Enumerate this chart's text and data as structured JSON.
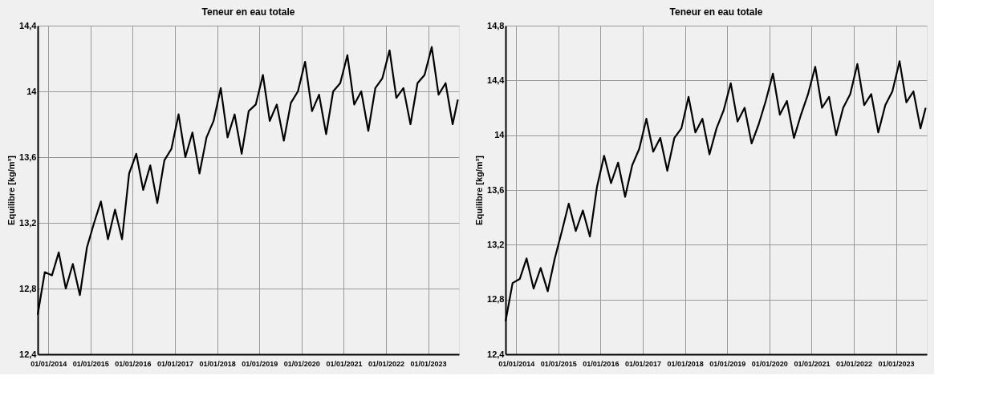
{
  "chart_data": [
    {
      "type": "line",
      "title": "Teneur en eau totale",
      "ylabel": "Equilibre [kg/m³]",
      "color": "#000000",
      "grid": true,
      "x": [
        "2013-10-01",
        "2013-12-01",
        "2014-02-01",
        "2014-04-01",
        "2014-06-01",
        "2014-08-01",
        "2014-10-01",
        "2014-12-01",
        "2015-02-01",
        "2015-04-01",
        "2015-06-01",
        "2015-08-01",
        "2015-10-01",
        "2015-12-01",
        "2016-02-01",
        "2016-04-01",
        "2016-06-01",
        "2016-08-01",
        "2016-10-01",
        "2016-12-01",
        "2017-02-01",
        "2017-04-01",
        "2017-06-01",
        "2017-08-01",
        "2017-10-01",
        "2017-12-01",
        "2018-02-01",
        "2018-04-01",
        "2018-06-01",
        "2018-08-01",
        "2018-10-01",
        "2018-12-01",
        "2019-02-01",
        "2019-04-01",
        "2019-06-01",
        "2019-08-01",
        "2019-10-01",
        "2019-12-01",
        "2020-02-01",
        "2020-04-01",
        "2020-06-01",
        "2020-08-01",
        "2020-10-01",
        "2020-12-01",
        "2021-02-01",
        "2021-04-01",
        "2021-06-01",
        "2021-08-01",
        "2021-10-01",
        "2021-12-01",
        "2022-02-01",
        "2022-04-01",
        "2022-06-01",
        "2022-08-01",
        "2022-10-01",
        "2022-12-01",
        "2023-02-01",
        "2023-04-01",
        "2023-06-01",
        "2023-08-01",
        "2023-09-15"
      ],
      "values": [
        12.64,
        12.9,
        12.88,
        13.02,
        12.8,
        12.95,
        12.76,
        13.05,
        13.2,
        13.33,
        13.1,
        13.28,
        13.1,
        13.5,
        13.62,
        13.4,
        13.55,
        13.32,
        13.58,
        13.65,
        13.86,
        13.6,
        13.75,
        13.5,
        13.72,
        13.82,
        14.02,
        13.72,
        13.86,
        13.62,
        13.88,
        13.92,
        14.1,
        13.82,
        13.92,
        13.7,
        13.93,
        14.0,
        14.18,
        13.88,
        13.98,
        13.74,
        14.0,
        14.05,
        14.22,
        13.92,
        14.0,
        13.76,
        14.02,
        14.08,
        14.25,
        13.96,
        14.02,
        13.8,
        14.05,
        14.1,
        14.27,
        13.98,
        14.05,
        13.8,
        13.95
      ],
      "xlim": [
        "2013-10-01",
        "2023-09-25"
      ],
      "xticks": [
        {
          "value": "2014-01-01",
          "label": "01/01/2014"
        },
        {
          "value": "2015-01-01",
          "label": "01/01/2015"
        },
        {
          "value": "2016-01-01",
          "label": "01/01/2016"
        },
        {
          "value": "2017-01-01",
          "label": "01/01/2017"
        },
        {
          "value": "2018-01-01",
          "label": "01/01/2018"
        },
        {
          "value": "2019-01-01",
          "label": "01/01/2019"
        },
        {
          "value": "2020-01-01",
          "label": "01/01/2020"
        },
        {
          "value": "2021-01-01",
          "label": "01/01/2021"
        },
        {
          "value": "2022-01-01",
          "label": "01/01/2022"
        },
        {
          "value": "2023-01-01",
          "label": "01/01/2023"
        }
      ],
      "ylim": [
        12.4,
        14.4
      ],
      "yticks": [
        {
          "value": 12.4,
          "label": "12,4"
        },
        {
          "value": 12.8,
          "label": "12,8"
        },
        {
          "value": 13.2,
          "label": "13,2"
        },
        {
          "value": 13.6,
          "label": "13,6"
        },
        14,
        {
          "value": 14.4,
          "label": "14,4"
        }
      ]
    },
    {
      "type": "line",
      "title": "Teneur en eau totale",
      "ylabel": "Equilibre [kg/m³]",
      "color": "#000000",
      "grid": true,
      "x": [
        "2013-10-01",
        "2013-12-01",
        "2014-02-01",
        "2014-04-01",
        "2014-06-01",
        "2014-08-01",
        "2014-10-01",
        "2014-12-01",
        "2015-02-01",
        "2015-04-01",
        "2015-06-01",
        "2015-08-01",
        "2015-10-01",
        "2015-12-01",
        "2016-02-01",
        "2016-04-01",
        "2016-06-01",
        "2016-08-01",
        "2016-10-01",
        "2016-12-01",
        "2017-02-01",
        "2017-04-01",
        "2017-06-01",
        "2017-08-01",
        "2017-10-01",
        "2017-12-01",
        "2018-02-01",
        "2018-04-01",
        "2018-06-01",
        "2018-08-01",
        "2018-10-01",
        "2018-12-01",
        "2019-02-01",
        "2019-04-01",
        "2019-06-01",
        "2019-08-01",
        "2019-10-01",
        "2019-12-01",
        "2020-02-01",
        "2020-04-01",
        "2020-06-01",
        "2020-08-01",
        "2020-10-01",
        "2020-12-01",
        "2021-02-01",
        "2021-04-01",
        "2021-06-01",
        "2021-08-01",
        "2021-10-01",
        "2021-12-01",
        "2022-02-01",
        "2022-04-01",
        "2022-06-01",
        "2022-08-01",
        "2022-10-01",
        "2022-12-01",
        "2023-02-01",
        "2023-04-01",
        "2023-06-01",
        "2023-08-01",
        "2023-09-15"
      ],
      "values": [
        12.64,
        12.92,
        12.95,
        13.1,
        12.88,
        13.03,
        12.86,
        13.1,
        13.3,
        13.5,
        13.3,
        13.45,
        13.26,
        13.62,
        13.85,
        13.65,
        13.8,
        13.55,
        13.78,
        13.9,
        14.12,
        13.88,
        13.98,
        13.74,
        13.98,
        14.05,
        14.28,
        14.02,
        14.12,
        13.86,
        14.05,
        14.18,
        14.38,
        14.1,
        14.2,
        13.94,
        14.08,
        14.25,
        14.45,
        14.15,
        14.25,
        13.98,
        14.15,
        14.3,
        14.5,
        14.2,
        14.28,
        14.0,
        14.2,
        14.3,
        14.52,
        14.22,
        14.3,
        14.02,
        14.22,
        14.32,
        14.54,
        14.24,
        14.32,
        14.05,
        14.2
      ],
      "xlim": [
        "2013-10-01",
        "2023-09-25"
      ],
      "xticks": [
        {
          "value": "2014-01-01",
          "label": "01/01/2014"
        },
        {
          "value": "2015-01-01",
          "label": "01/01/2015"
        },
        {
          "value": "2016-01-01",
          "label": "01/01/2016"
        },
        {
          "value": "2017-01-01",
          "label": "01/01/2017"
        },
        {
          "value": "2018-01-01",
          "label": "01/01/2018"
        },
        {
          "value": "2019-01-01",
          "label": "01/01/2019"
        },
        {
          "value": "2020-01-01",
          "label": "01/01/2020"
        },
        {
          "value": "2021-01-01",
          "label": "01/01/2021"
        },
        {
          "value": "2022-01-01",
          "label": "01/01/2022"
        },
        {
          "value": "2023-01-01",
          "label": "01/01/2023"
        }
      ],
      "ylim": [
        12.4,
        14.8
      ],
      "yticks": [
        {
          "value": 12.4,
          "label": "12,4"
        },
        {
          "value": 12.8,
          "label": "12,8"
        },
        {
          "value": 13.2,
          "label": "13,2"
        },
        {
          "value": 13.6,
          "label": "13,6"
        },
        14,
        {
          "value": 14.4,
          "label": "14,4"
        },
        {
          "value": 14.8,
          "label": "14,8"
        }
      ]
    }
  ]
}
